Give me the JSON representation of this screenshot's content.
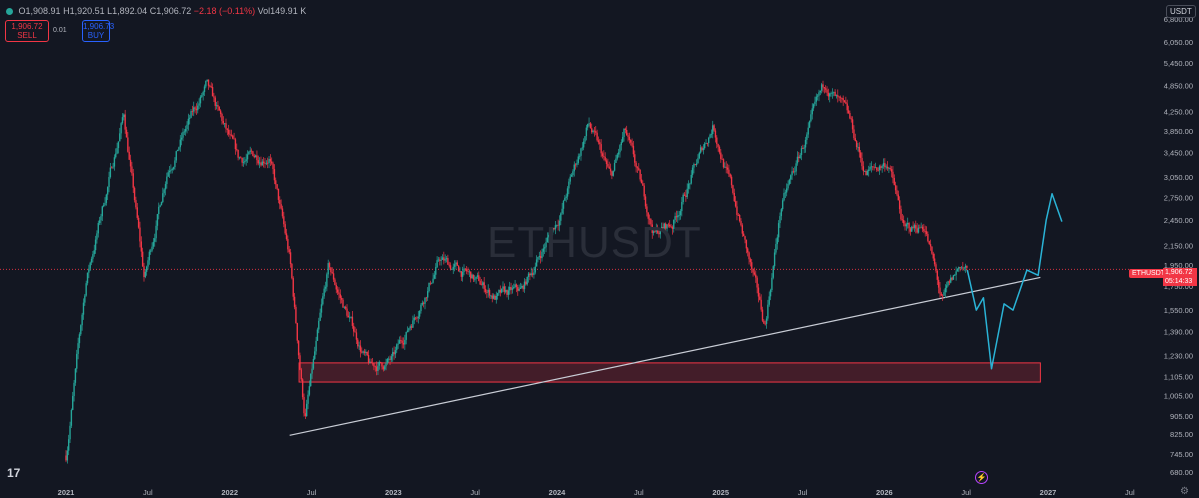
{
  "header": {
    "open": "O1,908.91",
    "high": "H1,920.51",
    "low": "L1,892.04",
    "close": "C1,906.72",
    "change": "−2.18 (−0.11%)",
    "volume": "Vol149.91 K",
    "sell_price": "1,906.72",
    "sell_label": "SELL",
    "spread": "0.01",
    "buy_price": "1,906.73",
    "buy_label": "BUY",
    "currency": "USDT"
  },
  "watermark": "ETHUSDT",
  "tag": {
    "symbol": "ETHUSDT",
    "price": "1,906.72",
    "timer": "05:14:33"
  },
  "colors": {
    "up": "#26a69a",
    "down": "#f23645",
    "projection": "#2ab3d6",
    "zone": "#f23645",
    "trendline": "#c9cdd6",
    "background": "#131722"
  },
  "chart_data": {
    "type": "line",
    "x_labels": [
      "2021",
      "Jul",
      "2022",
      "Jul",
      "2023",
      "Jul",
      "2024",
      "Jul",
      "2025",
      "Jul",
      "2026",
      "Jul",
      "2027",
      "Jul"
    ],
    "y_ticks": [
      680,
      745,
      825,
      905,
      1005,
      1105,
      1230,
      1390,
      1550,
      1750,
      1950,
      2150,
      2450,
      2750,
      3050,
      3450,
      3850,
      4250,
      4850,
      5450,
      6050,
      6800
    ],
    "y_labels": [
      "680.00",
      "745.00",
      "825.00",
      "905.00",
      "1,005.00",
      "1,105.00",
      "1,230.00",
      "1,390.00",
      "1,550.00",
      "1,750.00",
      "1,950.00",
      "2,150.00",
      "2,450.00",
      "2,750.00",
      "3,050.00",
      "3,450.00",
      "3,850.00",
      "4,250.00",
      "4,850.00",
      "5,450.00",
      "6,050.00",
      "6,800.00"
    ],
    "series": [
      {
        "x": [
          "2021-01-01",
          "2021-02-15",
          "2021-05-10",
          "2021-06-25",
          "2021-08-15",
          "2021-11-10",
          "2022-01-20",
          "2022-03-30",
          "2022-05-15",
          "2022-06-18",
          "2022-08-10",
          "2022-11-10",
          "2023-01-01",
          "2023-04-15",
          "2023-06-15",
          "2023-08-20",
          "2023-10-15",
          "2024-01-10",
          "2024-03-12",
          "2024-05-01",
          "2024-06-01",
          "2024-08-05",
          "2024-09-15",
          "2024-12-15",
          "2025-02-01",
          "2025-04-09",
          "2025-05-15",
          "2025-07-10",
          "2025-08-24",
          "2025-10-15",
          "2025-11-20",
          "2026-01-10",
          "2026-02-15",
          "2026-04-01",
          "2026-05-10",
          "2026-06-20",
          "2026-07-05"
        ],
        "y": [
          740,
          1800,
          4200,
          1800,
          3200,
          4800,
          3300,
          3450,
          2000,
          900,
          1900,
          1150,
          1200,
          2000,
          1850,
          1650,
          1700,
          2550,
          4000,
          3000,
          3800,
          2300,
          2400,
          4000,
          2700,
          1420,
          2600,
          3700,
          4900,
          4000,
          3100,
          3300,
          2300,
          2400,
          1600,
          1950,
          1907
        ]
      }
    ],
    "projection": {
      "x": [
        "2026-07-05",
        "2026-07-25",
        "2026-08-10",
        "2026-08-28",
        "2026-09-25",
        "2026-10-15",
        "2026-11-15",
        "2026-12-10",
        "2026-12-28",
        "2027-01-10",
        "2027-02-01"
      ],
      "y": [
        1900,
        1550,
        1650,
        1150,
        1600,
        1550,
        1900,
        1850,
        2450,
        2800,
        2430
      ]
    },
    "trendline": {
      "x": [
        "2022-05-15",
        "2026-12-15"
      ],
      "y": [
        820,
        1830
      ]
    },
    "zone": {
      "x": [
        "2022-06-05",
        "2026-12-15"
      ],
      "y": [
        1075,
        1185
      ]
    },
    "last_price": 1906.72,
    "ylim": [
      660,
      7200
    ],
    "log_scale": true,
    "grid": false
  }
}
